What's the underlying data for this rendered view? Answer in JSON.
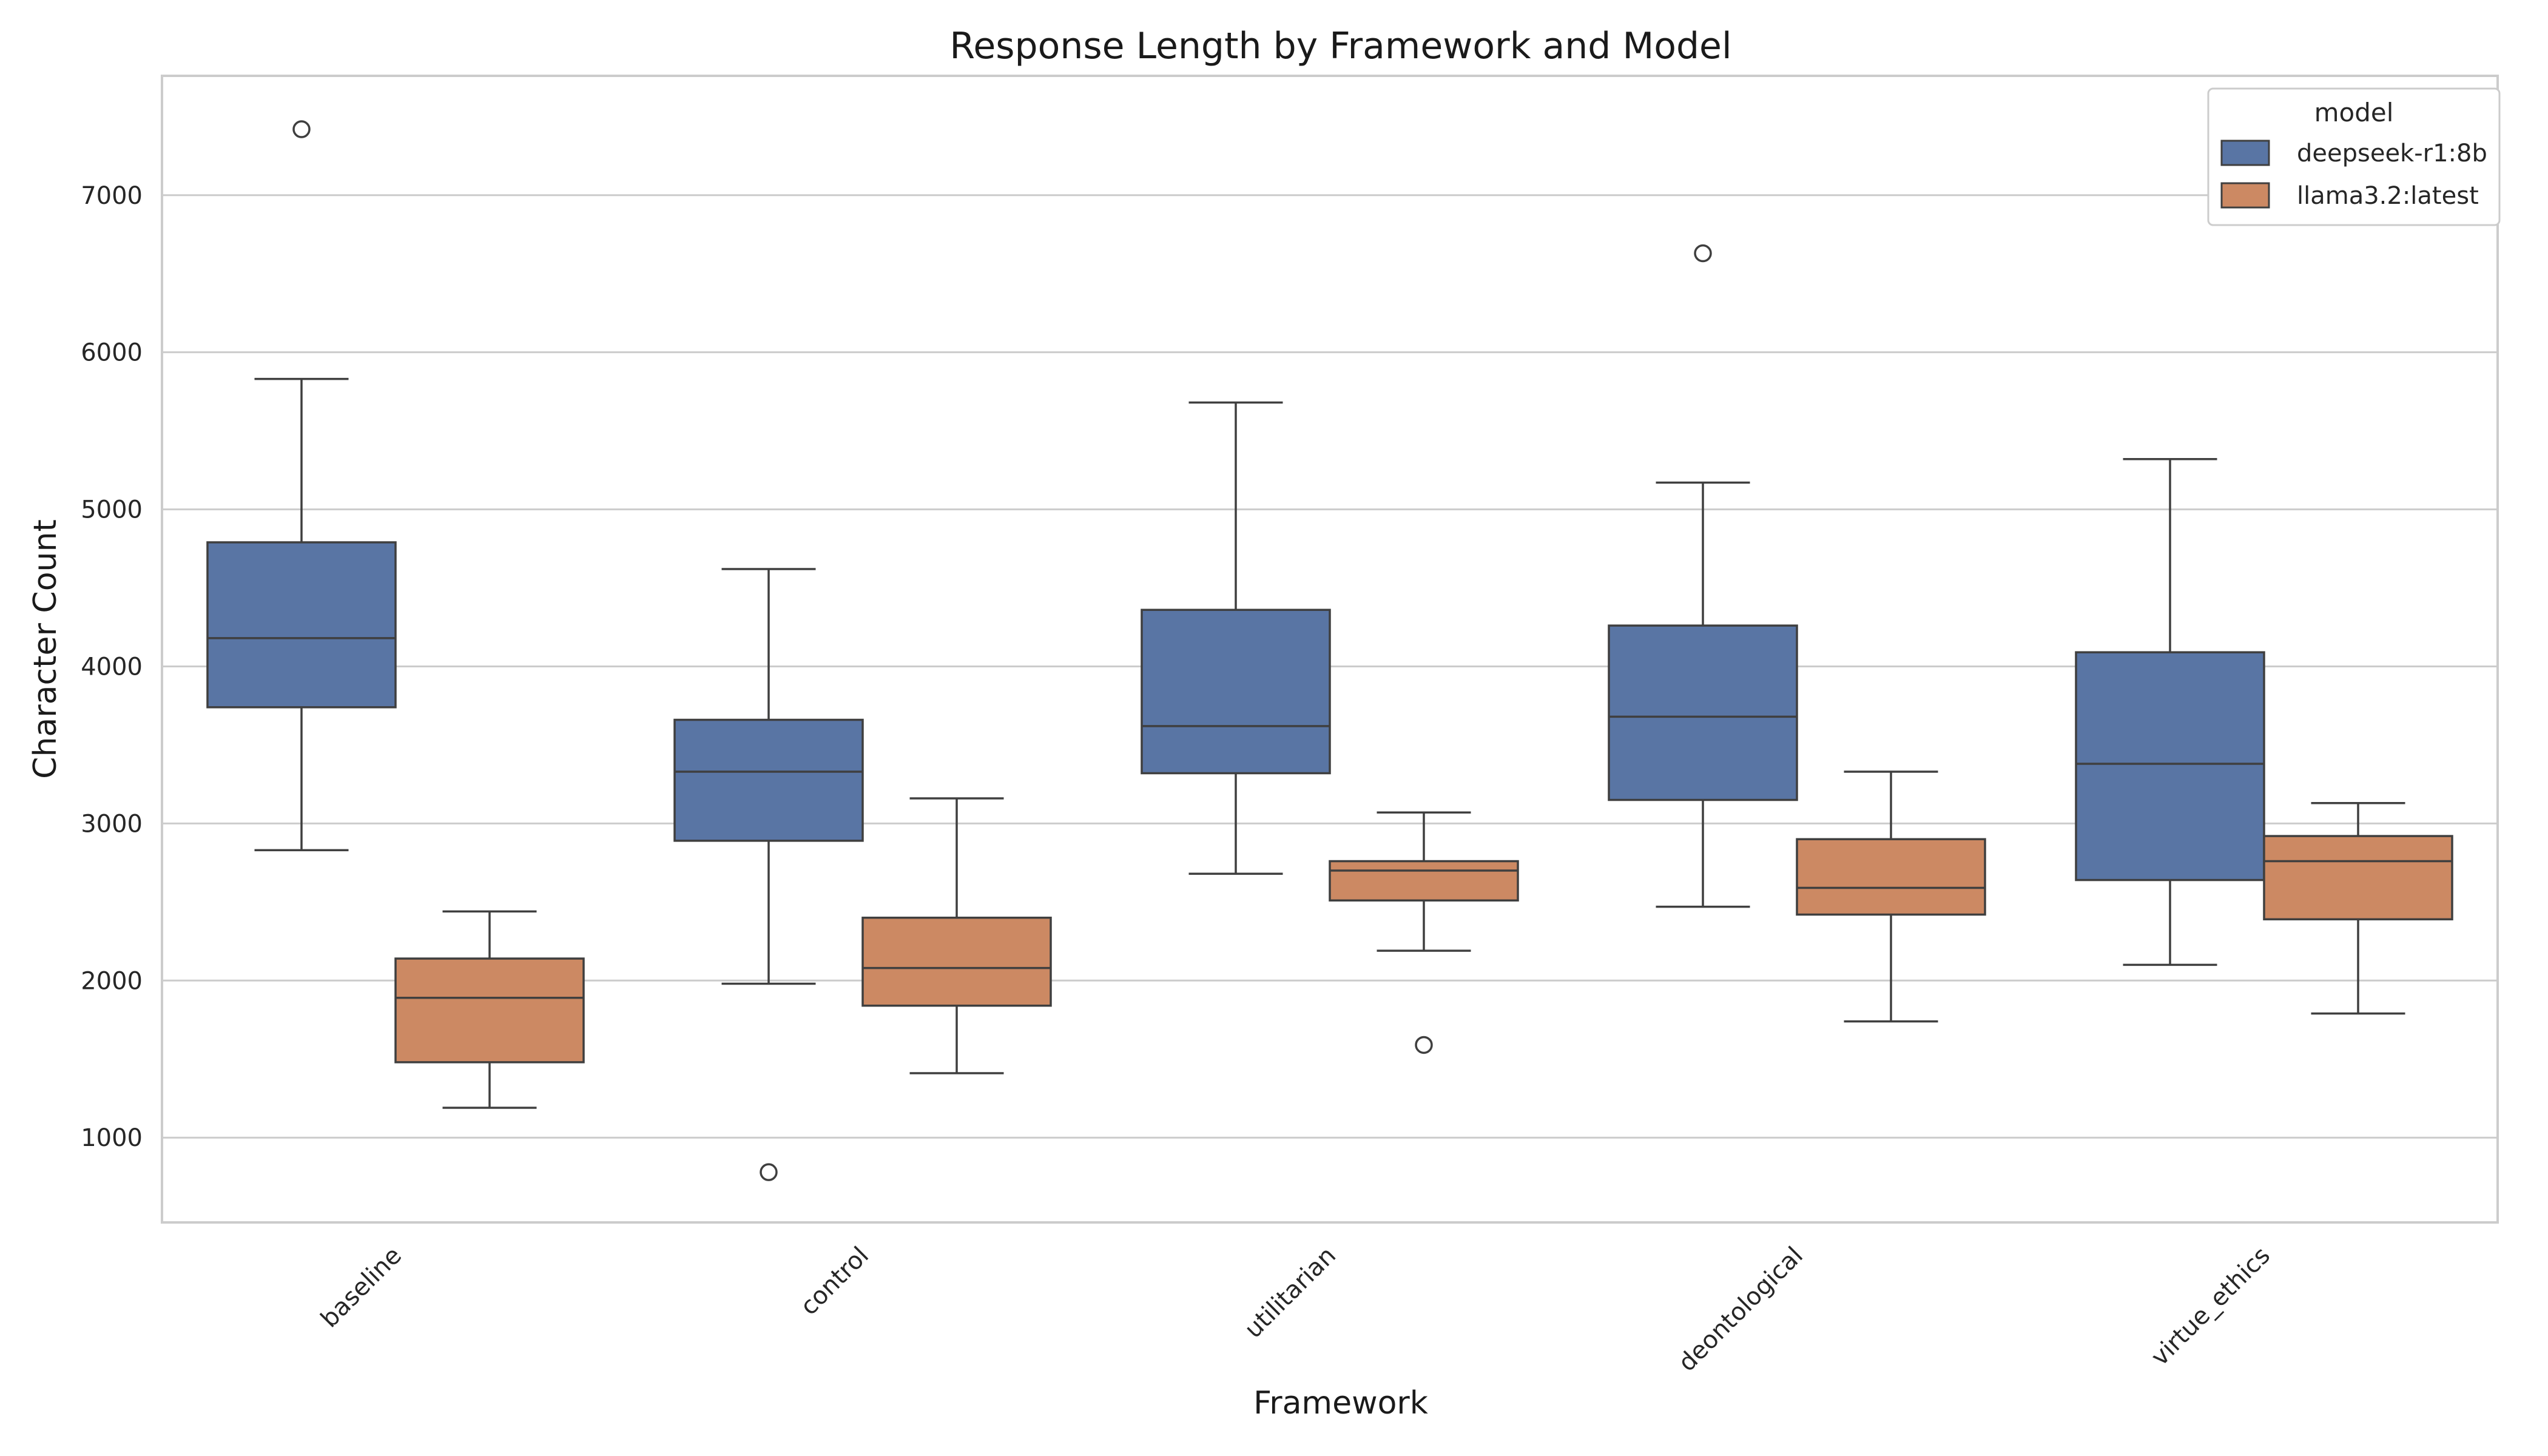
{
  "chart_data": {
    "type": "boxplot",
    "title": "Response Length by Framework and Model",
    "xlabel": "Framework",
    "ylabel": "Character Count",
    "categories": [
      "baseline",
      "control",
      "utilitarian",
      "deontological",
      "virtue_ethics"
    ],
    "ylim": [
      460,
      7760
    ],
    "yticks": [
      1000,
      2000,
      3000,
      4000,
      5000,
      6000,
      7000
    ],
    "grid": "horizontal",
    "legend": {
      "title": "model",
      "placement": "top-right"
    },
    "series": [
      {
        "name": "deepseek-r1:8b",
        "color": "#5975a4",
        "boxes": [
          {
            "whisker_low": 2830,
            "q1": 3740,
            "median": 4180,
            "q3": 4790,
            "whisker_high": 5830,
            "outliers": [
              7420
            ]
          },
          {
            "whisker_low": 1980,
            "q1": 2890,
            "median": 3330,
            "q3": 3660,
            "whisker_high": 4620,
            "outliers": [
              780
            ]
          },
          {
            "whisker_low": 2680,
            "q1": 3320,
            "median": 3620,
            "q3": 4360,
            "whisker_high": 5680,
            "outliers": []
          },
          {
            "whisker_low": 2470,
            "q1": 3150,
            "median": 3680,
            "q3": 4260,
            "whisker_high": 5170,
            "outliers": [
              6630
            ]
          },
          {
            "whisker_low": 2100,
            "q1": 2640,
            "median": 3380,
            "q3": 4090,
            "whisker_high": 5320,
            "outliers": []
          }
        ]
      },
      {
        "name": "llama3.2:latest",
        "color": "#cc8963",
        "boxes": [
          {
            "whisker_low": 1190,
            "q1": 1480,
            "median": 1890,
            "q3": 2140,
            "whisker_high": 2440,
            "outliers": []
          },
          {
            "whisker_low": 1410,
            "q1": 1840,
            "median": 2080,
            "q3": 2400,
            "whisker_high": 3160,
            "outliers": []
          },
          {
            "whisker_low": 2190,
            "q1": 2510,
            "median": 2700,
            "q3": 2760,
            "whisker_high": 3070,
            "outliers": [
              1590
            ]
          },
          {
            "whisker_low": 1740,
            "q1": 2420,
            "median": 2590,
            "q3": 2900,
            "whisker_high": 3330,
            "outliers": []
          },
          {
            "whisker_low": 1790,
            "q1": 2390,
            "median": 2760,
            "q3": 2920,
            "whisker_high": 3130,
            "outliers": []
          }
        ]
      }
    ]
  }
}
